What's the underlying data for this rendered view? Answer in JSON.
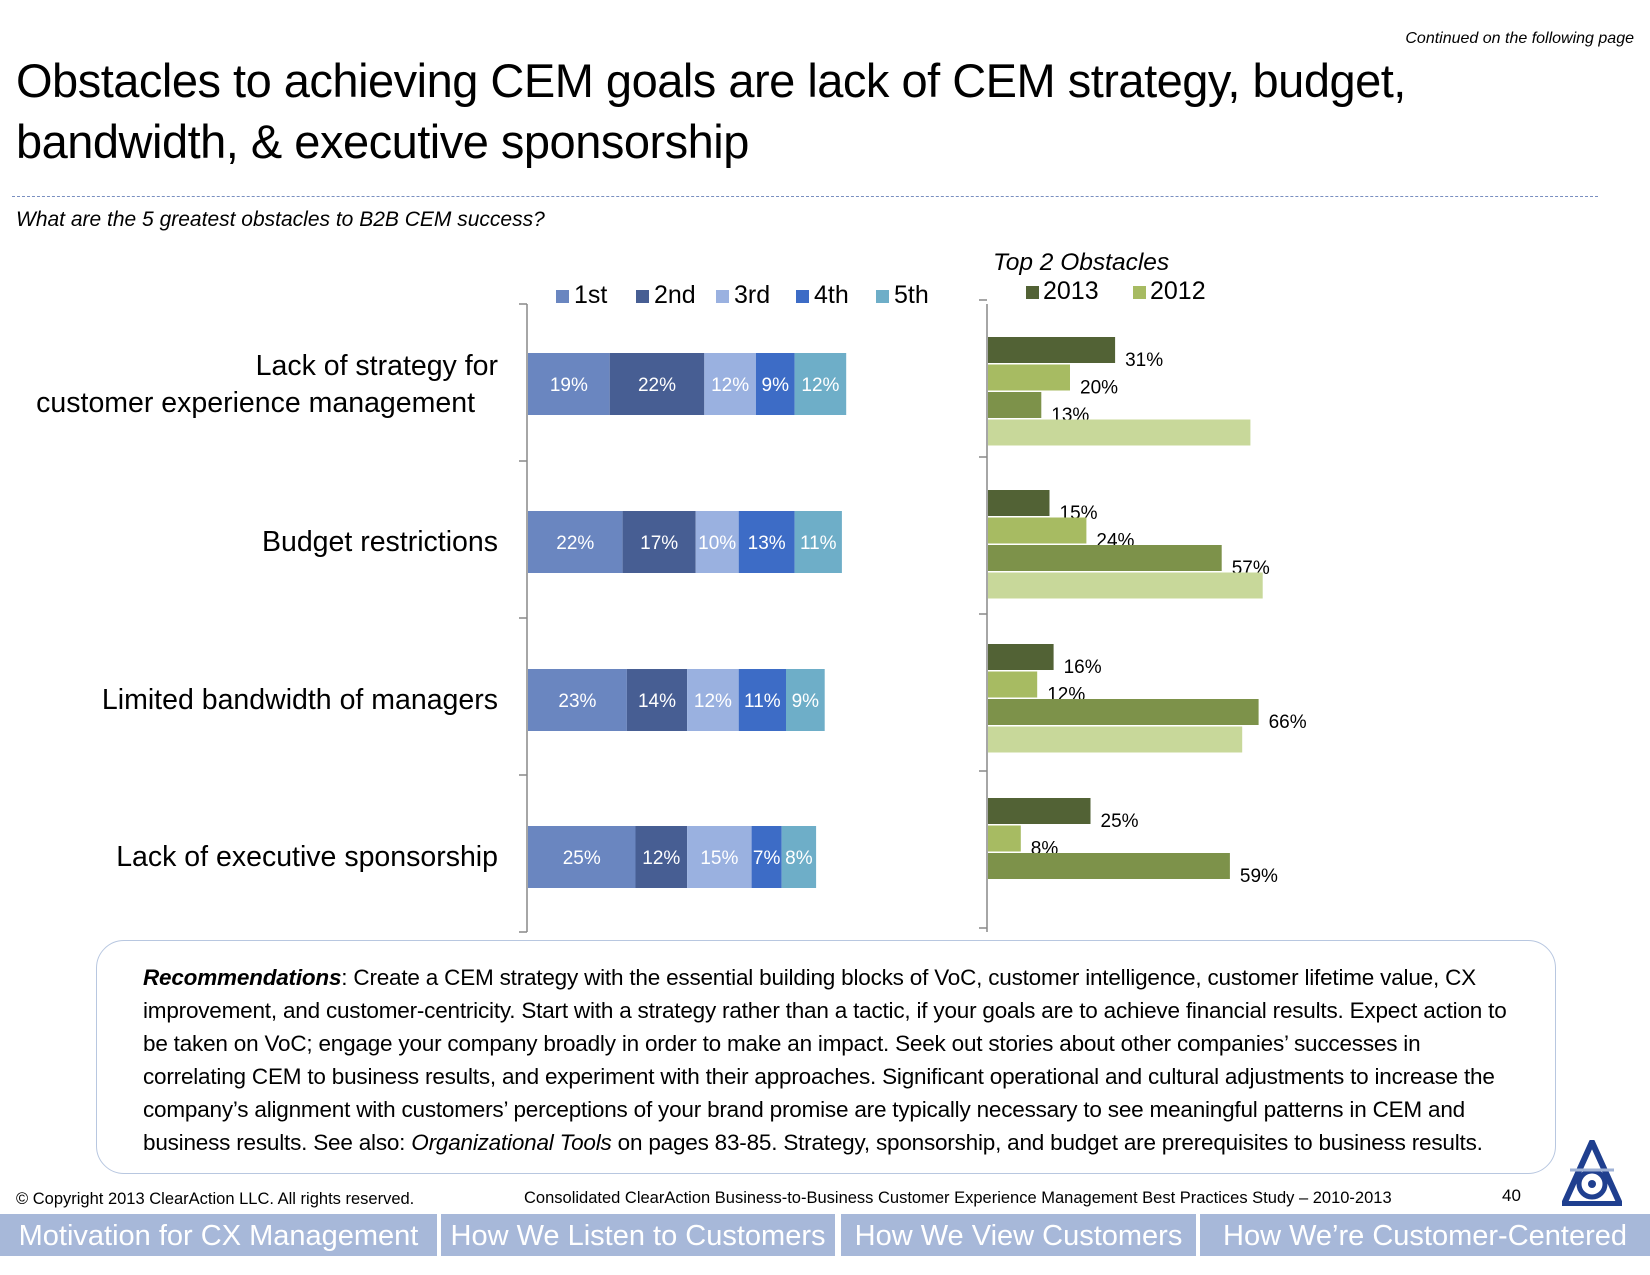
{
  "header": {
    "continued": "Continued on the following page",
    "title": "Obstacles to achieving CEM goals are lack of CEM strategy, budget, bandwidth, & executive sponsorship",
    "question": "What are the 5 greatest obstacles to B2B CEM success?"
  },
  "chart_data": [
    {
      "type": "bar",
      "orientation": "horizontal",
      "stacked": true,
      "categories": [
        "Lack of strategy for customer experience management",
        "Budget restrictions",
        "Limited bandwidth of managers",
        "Lack of executive sponsorship"
      ],
      "series": [
        {
          "name": "1st",
          "color": "#6a86c0",
          "values": [
            19,
            22,
            23,
            25
          ]
        },
        {
          "name": "2nd",
          "color": "#475e93",
          "values": [
            22,
            17,
            14,
            12
          ]
        },
        {
          "name": "3rd",
          "color": "#9ab1e0",
          "values": [
            12,
            10,
            12,
            15
          ]
        },
        {
          "name": "4th",
          "color": "#3d6cc6",
          "values": [
            9,
            13,
            11,
            7
          ]
        },
        {
          "name": "5th",
          "color": "#6eaec8",
          "values": [
            12,
            11,
            9,
            8
          ]
        }
      ],
      "value_suffix": "%",
      "legend_position": "top"
    },
    {
      "type": "bar",
      "orientation": "horizontal",
      "title": "Top 2 Obstacles",
      "categories": [
        "Lack of strategy for customer experience management",
        "Budget restrictions",
        "Limited bandwidth of managers",
        "Lack of executive sponsorship"
      ],
      "legend": [
        {
          "name": "2013",
          "color": "#526235"
        },
        {
          "name": "2012",
          "color": "#a7bb62"
        }
      ],
      "bars_per_category": [
        [
          {
            "value": 31,
            "label": "31%",
            "color": "#526235"
          },
          {
            "value": 20,
            "label": "20%",
            "color": "#a7bb62"
          },
          {
            "value": 13,
            "label": "13%",
            "color": "#7d924a"
          },
          {
            "value": 64,
            "label": "",
            "color": "#c8d89a"
          }
        ],
        [
          {
            "value": 15,
            "label": "15%",
            "color": "#526235"
          },
          {
            "value": 24,
            "label": "24%",
            "color": "#a7bb62"
          },
          {
            "value": 57,
            "label": "57%",
            "color": "#7d924a"
          },
          {
            "value": 67,
            "label": "",
            "color": "#c8d89a"
          }
        ],
        [
          {
            "value": 16,
            "label": "16%",
            "color": "#526235"
          },
          {
            "value": 12,
            "label": "12%",
            "color": "#a7bb62"
          },
          {
            "value": 66,
            "label": "66%",
            "color": "#7d924a"
          },
          {
            "value": 62,
            "label": "",
            "color": "#c8d89a"
          }
        ],
        [
          {
            "value": 25,
            "label": "25%",
            "color": "#526235"
          },
          {
            "value": 8,
            "label": "8%",
            "color": "#a7bb62"
          },
          {
            "value": 59,
            "label": "59%",
            "color": "#7d924a"
          }
        ]
      ],
      "legend_position": "top-left"
    }
  ],
  "recommendations": {
    "heading": "Recommendations",
    "body_1": ": Create a CEM strategy with the essential building blocks of VoC, customer intelligence, customer lifetime value, CX improvement, and customer-centricity. Start with a strategy rather than a tactic, if your goals are to achieve financial results. Expect action to be taken on VoC; engage your company broadly in order to make an impact.  Seek out stories about other companies’ successes in correlating CEM to business results, and experiment with their approaches. Significant operational and cultural adjustments to increase the company’s alignment with customers’ perceptions of your brand promise are typically necessary to see meaningful patterns in CEM and business results. See also:  ",
    "link": "Organizational Tools",
    "body_2": " on pages 83-85. Strategy, sponsorship, and budget are prerequisites to business results."
  },
  "footer": {
    "copyright": "© Copyright 2013 ClearAction LLC. All rights reserved.",
    "study": "Consolidated ClearAction Business-to-Business Customer Experience Management Best Practices Study – 2010-2013",
    "page_number": "40",
    "logo_icon": "clearaction-logo-icon",
    "tabs": [
      "Motivation for CX Management",
      "How We Listen to Customers",
      "How We View Customers",
      "How We’re Customer-Centered"
    ]
  }
}
